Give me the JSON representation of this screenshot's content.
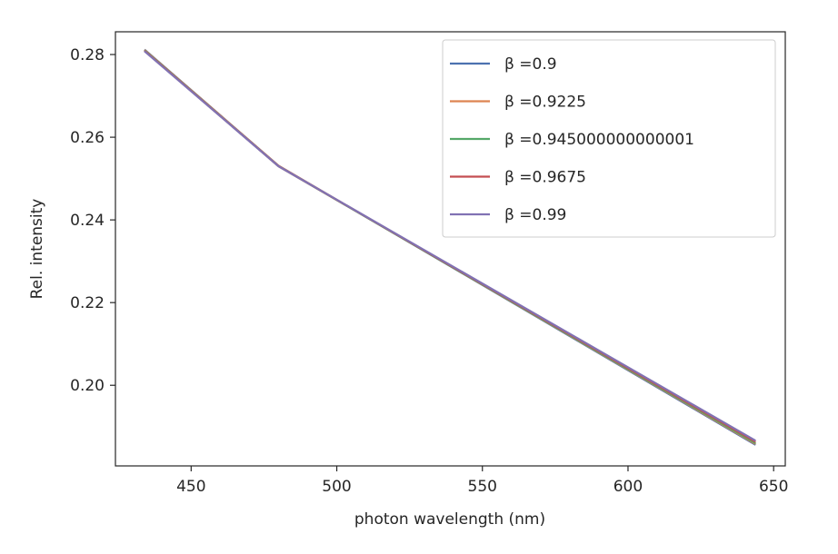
{
  "chart_data": {
    "type": "line",
    "title": "",
    "xlabel": "photon wavelength (nm)",
    "ylabel": "Rel. intensity",
    "xlim": [
      424,
      654
    ],
    "ylim": [
      0.1805,
      0.2855
    ],
    "xticks": [
      450,
      500,
      550,
      600,
      650
    ],
    "yticks": [
      0.2,
      0.22,
      0.24,
      0.26,
      0.28
    ],
    "ytick_labels": [
      "0.20",
      "0.22",
      "0.24",
      "0.26",
      "0.28"
    ],
    "legend_position": "top-right",
    "grid": false,
    "x": [
      434.0,
      480.0,
      643.8
    ],
    "series": [
      {
        "name": "β =0.9",
        "color": "#4c72b0",
        "values": [
          0.2812,
          0.2531,
          0.1856
        ]
      },
      {
        "name": "β =0.9225",
        "color": "#dd8452",
        "values": [
          0.2811,
          0.2531,
          0.1858
        ]
      },
      {
        "name": "β =0.945000000000001",
        "color": "#55a868",
        "values": [
          0.281,
          0.253,
          0.186
        ]
      },
      {
        "name": "β =0.9675",
        "color": "#c44e52",
        "values": [
          0.2809,
          0.253,
          0.1863
        ]
      },
      {
        "name": "β =0.99",
        "color": "#8172b3",
        "values": [
          0.2808,
          0.253,
          0.1866
        ]
      }
    ]
  }
}
